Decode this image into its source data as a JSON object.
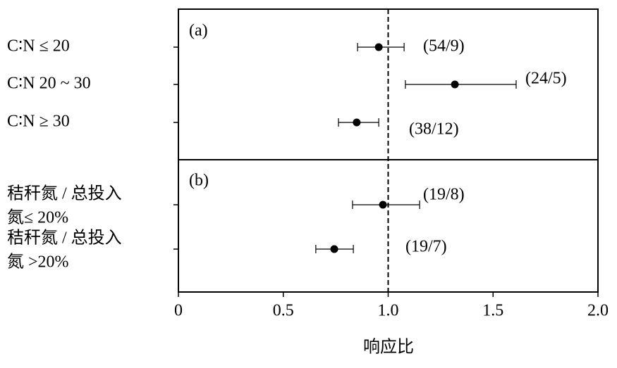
{
  "chart_data": {
    "type": "forest",
    "xlabel": "响应比",
    "xlim": [
      0,
      2.0
    ],
    "xticks": [
      0,
      0.5,
      {
        "value": 1.0,
        "label": "1.0"
      },
      1.5,
      {
        "value": 2.0,
        "label": "2.0"
      }
    ],
    "reference_line": 1.0,
    "color": "#000000",
    "panels": [
      {
        "label": "(a)",
        "categories": [
          "C∶N ≤ 20",
          "C∶N 20 ~ 30",
          "C∶N ≥ 30"
        ],
        "values": [
          0.955,
          1.318,
          0.85
        ],
        "lower": [
          0.854,
          1.082,
          0.763
        ],
        "upper": [
          1.076,
          1.61,
          0.955
        ],
        "annotations": [
          "(54/9)",
          "(24/5)",
          "(38/12)"
        ]
      },
      {
        "label": "(b)",
        "categories": [
          [
            "秸秆氮 / 总投入",
            "氮≤ 20%"
          ],
          [
            "秸秆氮 / 总投入",
            "氮 >20%"
          ]
        ],
        "values": [
          0.975,
          0.743
        ],
        "lower": [
          0.83,
          0.655
        ],
        "upper": [
          1.15,
          0.834
        ],
        "annotations": [
          "(19/8)",
          "(19/7)"
        ]
      }
    ]
  }
}
